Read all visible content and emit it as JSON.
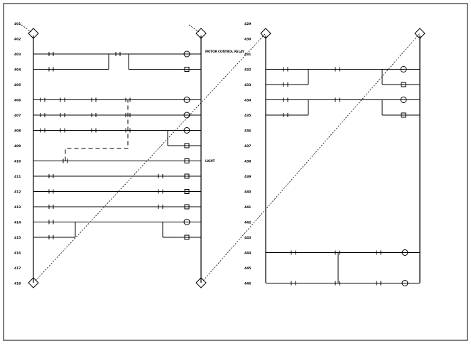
{
  "left_ladder": {
    "rung_numbers": [
      "401",
      "402",
      "403",
      "404",
      "405",
      "406",
      "407",
      "408",
      "409",
      "410",
      "411",
      "412",
      "413",
      "414",
      "415",
      "416",
      "417",
      "418"
    ]
  },
  "right_ladder": {
    "rung_numbers": [
      "429",
      "430",
      "431",
      "432",
      "433",
      "434",
      "435",
      "436",
      "437",
      "438",
      "439",
      "440",
      "441",
      "442",
      "443",
      "444",
      "445",
      "446"
    ]
  },
  "labels": {
    "motor_control_relay": "MOTOR CONTROL RELAY",
    "light": "LIGHT"
  }
}
